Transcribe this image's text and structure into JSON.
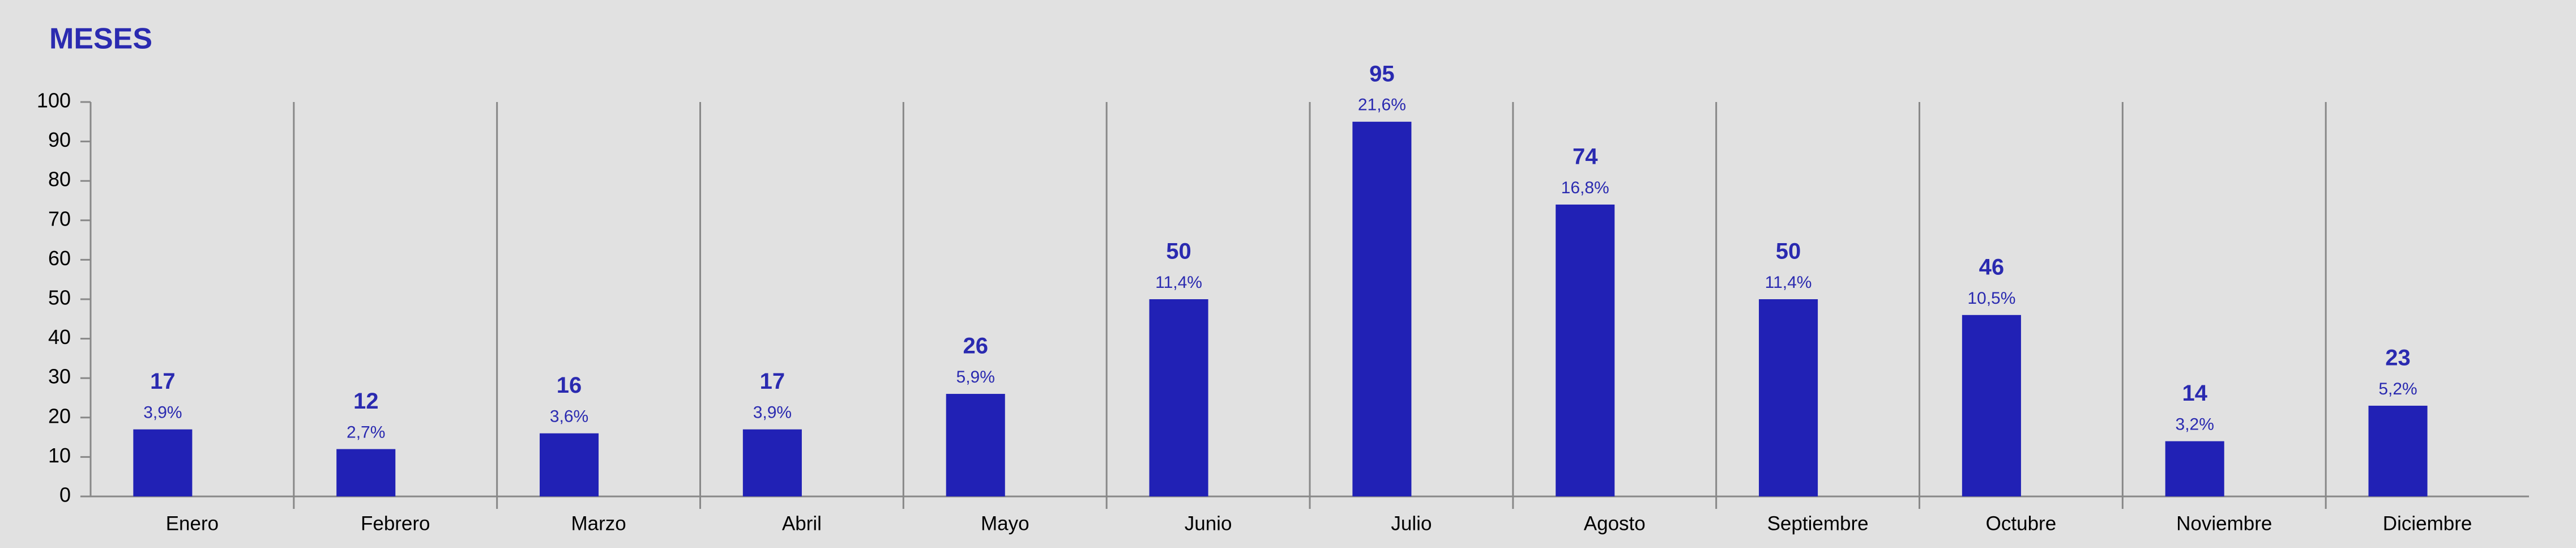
{
  "chart_data": {
    "type": "bar",
    "title": "MESES",
    "categories": [
      "Enero",
      "Febrero",
      "Marzo",
      "Abril",
      "Mayo",
      "Junio",
      "Julio",
      "Agosto",
      "Septiembre",
      "Octubre",
      "Noviembre",
      "Diciembre"
    ],
    "values": [
      17,
      12,
      16,
      17,
      26,
      50,
      95,
      74,
      50,
      46,
      14,
      23
    ],
    "shares": [
      3.9,
      2.7,
      3.6,
      3.9,
      5.9,
      11.4,
      21.6,
      16.8,
      11.4,
      10.5,
      3.2,
      5.2
    ],
    "share_labels": [
      "3,9%",
      "2,7%",
      "3,6%",
      "3,9%",
      "5,9%",
      "11,4%",
      "21,6%",
      "16,8%",
      "11,4%",
      "10,5%",
      "3,2%",
      "5,2%"
    ],
    "color": "#2121b5",
    "ylim": [
      0,
      100
    ],
    "yticks": [
      0,
      10,
      20,
      30,
      40,
      50,
      60,
      70,
      80,
      90,
      100
    ],
    "grid": false
  }
}
